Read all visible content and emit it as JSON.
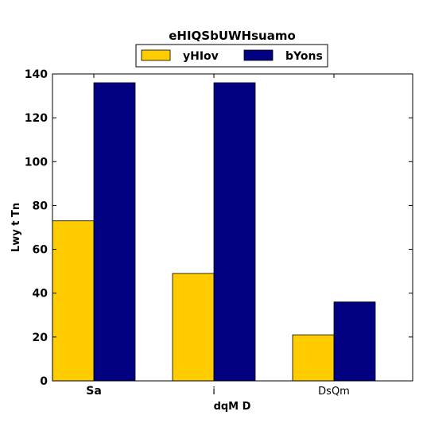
{
  "chart_data": {
    "type": "bar",
    "title": "eHIQSbUWHsuamo",
    "xlabel": "dqM D",
    "ylabel": "Lwy t   Tn",
    "categories": [
      "Sa",
      "i",
      "DsQm"
    ],
    "series": [
      {
        "name": "yHIov",
        "color": "#ffcc00",
        "values": [
          73,
          49,
          21
        ]
      },
      {
        "name": "bYons",
        "color": "#000080",
        "values": [
          136,
          136,
          36
        ]
      }
    ],
    "ylim": [
      0,
      140
    ],
    "yticks": [
      0,
      20,
      40,
      60,
      80,
      100,
      120,
      140
    ],
    "grid": false,
    "legend_position": "top-center"
  }
}
